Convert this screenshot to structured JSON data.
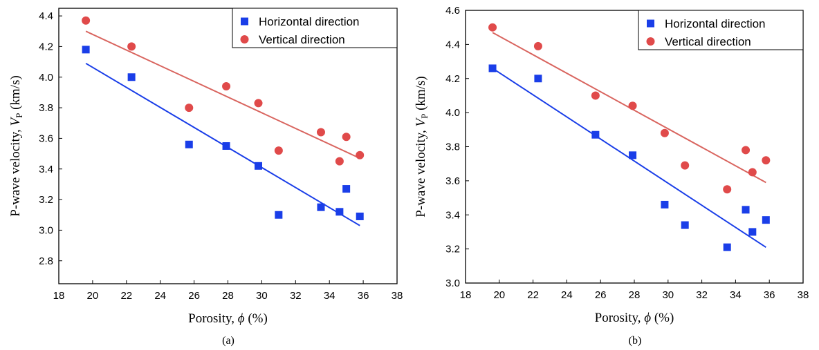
{
  "chart_data": [
    {
      "type": "scatter",
      "caption": "(a)",
      "xlabel": {
        "main": "Porosity, ",
        "symbol": "ϕ",
        "unit": " (%)"
      },
      "ylabel": {
        "main": "P-wave velocity, ",
        "symbol": "V",
        "subscript": "P",
        "unit": " (km/s)"
      },
      "xlim": [
        18,
        38
      ],
      "ylim": [
        2.65,
        4.45
      ],
      "xticks": [
        "18",
        "20",
        "22",
        "24",
        "26",
        "28",
        "30",
        "32",
        "34",
        "36",
        "38"
      ],
      "yticks": [
        "2.8",
        "3.0",
        "3.2",
        "3.4",
        "3.6",
        "3.8",
        "4.0",
        "4.2",
        "4.4"
      ],
      "legend_position": "top-right",
      "grid": false,
      "series": [
        {
          "name": "Horizontal direction",
          "marker": "square",
          "color": "#1a3ee8",
          "line_color": "#1a3ee8",
          "x": [
            19.6,
            22.3,
            25.7,
            27.9,
            29.8,
            31.0,
            33.5,
            34.6,
            35.0,
            35.8
          ],
          "y": [
            4.18,
            4.0,
            3.56,
            3.55,
            3.42,
            3.1,
            3.15,
            3.12,
            3.27,
            3.09
          ],
          "fit": {
            "x": [
              19.6,
              35.8
            ],
            "y": [
              4.09,
              3.03
            ]
          }
        },
        {
          "name": "Vertical direction",
          "marker": "circle",
          "color": "#e04a4a",
          "line_color": "#d9655f",
          "x": [
            19.6,
            22.3,
            25.7,
            27.9,
            29.8,
            31.0,
            33.5,
            34.6,
            35.0,
            35.8
          ],
          "y": [
            4.37,
            4.2,
            3.8,
            3.94,
            3.83,
            3.52,
            3.64,
            3.45,
            3.61,
            3.49
          ],
          "fit": {
            "x": [
              19.6,
              35.8
            ],
            "y": [
              4.3,
              3.47
            ]
          }
        }
      ]
    },
    {
      "type": "scatter",
      "caption": "(b)",
      "xlabel": {
        "main": "Porosity, ",
        "symbol": "ϕ",
        "unit": " (%)"
      },
      "ylabel": {
        "main": "P-wave velocity, ",
        "symbol": "V",
        "subscript": "P",
        "unit": " (km/s)"
      },
      "xlim": [
        18,
        38
      ],
      "ylim": [
        3.0,
        4.6
      ],
      "xticks": [
        "18",
        "20",
        "22",
        "24",
        "26",
        "28",
        "30",
        "32",
        "34",
        "36",
        "38"
      ],
      "yticks": [
        "3.0",
        "3.2",
        "3.4",
        "3.6",
        "3.8",
        "4.0",
        "4.2",
        "4.4",
        "4.6"
      ],
      "legend_position": "top-right",
      "grid": false,
      "series": [
        {
          "name": "Horizontal direction",
          "marker": "square",
          "color": "#1a3ee8",
          "line_color": "#1a3ee8",
          "x": [
            19.6,
            22.3,
            25.7,
            27.9,
            29.8,
            31.0,
            33.5,
            34.6,
            35.0,
            35.8
          ],
          "y": [
            4.26,
            4.2,
            3.87,
            3.75,
            3.46,
            3.34,
            3.21,
            3.43,
            3.3,
            3.37
          ],
          "fit": {
            "x": [
              19.6,
              35.8
            ],
            "y": [
              4.26,
              3.21
            ]
          }
        },
        {
          "name": "Vertical direction",
          "marker": "circle",
          "color": "#e04a4a",
          "line_color": "#d9655f",
          "x": [
            19.6,
            22.3,
            25.7,
            27.9,
            29.8,
            31.0,
            33.5,
            34.6,
            35.0,
            35.8
          ],
          "y": [
            4.5,
            4.39,
            4.1,
            4.04,
            3.88,
            3.69,
            3.55,
            3.78,
            3.65,
            3.72
          ],
          "fit": {
            "x": [
              19.6,
              35.8
            ],
            "y": [
              4.47,
              3.59
            ]
          }
        }
      ]
    }
  ]
}
